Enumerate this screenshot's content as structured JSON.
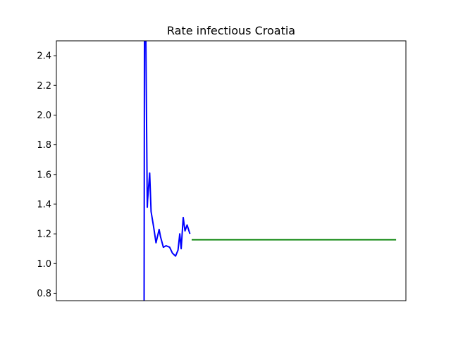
{
  "chart_data": {
    "type": "line",
    "title": "Rate infectious Croatia",
    "xlabel": "",
    "ylabel": "",
    "ylim": [
      0.75,
      2.5
    ],
    "xlim": [
      0,
      100
    ],
    "yticks": [
      "0.8",
      "1.0",
      "1.2",
      "1.4",
      "1.6",
      "1.8",
      "2.0",
      "2.2",
      "2.4"
    ],
    "ytick_values": [
      0.8,
      1.0,
      1.2,
      1.4,
      1.6,
      1.8,
      2.0,
      2.2,
      2.4
    ],
    "grid": false,
    "series": [
      {
        "color": "#0000ff",
        "x": [
          25.1,
          25.2,
          25.6,
          26.0,
          26.1,
          26.7,
          27.1,
          27.8,
          28.5,
          29.4,
          29.8,
          30.6,
          31.4,
          32.4,
          33.2,
          34.1,
          34.8,
          35.3,
          35.7,
          36.3,
          36.8,
          37.4,
          38.2
        ],
        "y": [
          0.75,
          2.5,
          2.5,
          1.38,
          1.43,
          1.61,
          1.35,
          1.25,
          1.14,
          1.23,
          1.18,
          1.11,
          1.12,
          1.11,
          1.07,
          1.05,
          1.09,
          1.2,
          1.1,
          1.31,
          1.22,
          1.26,
          1.2
        ]
      },
      {
        "color": "#008000",
        "x": [
          38.7,
          97.2
        ],
        "y": [
          1.16,
          1.16
        ]
      }
    ]
  }
}
